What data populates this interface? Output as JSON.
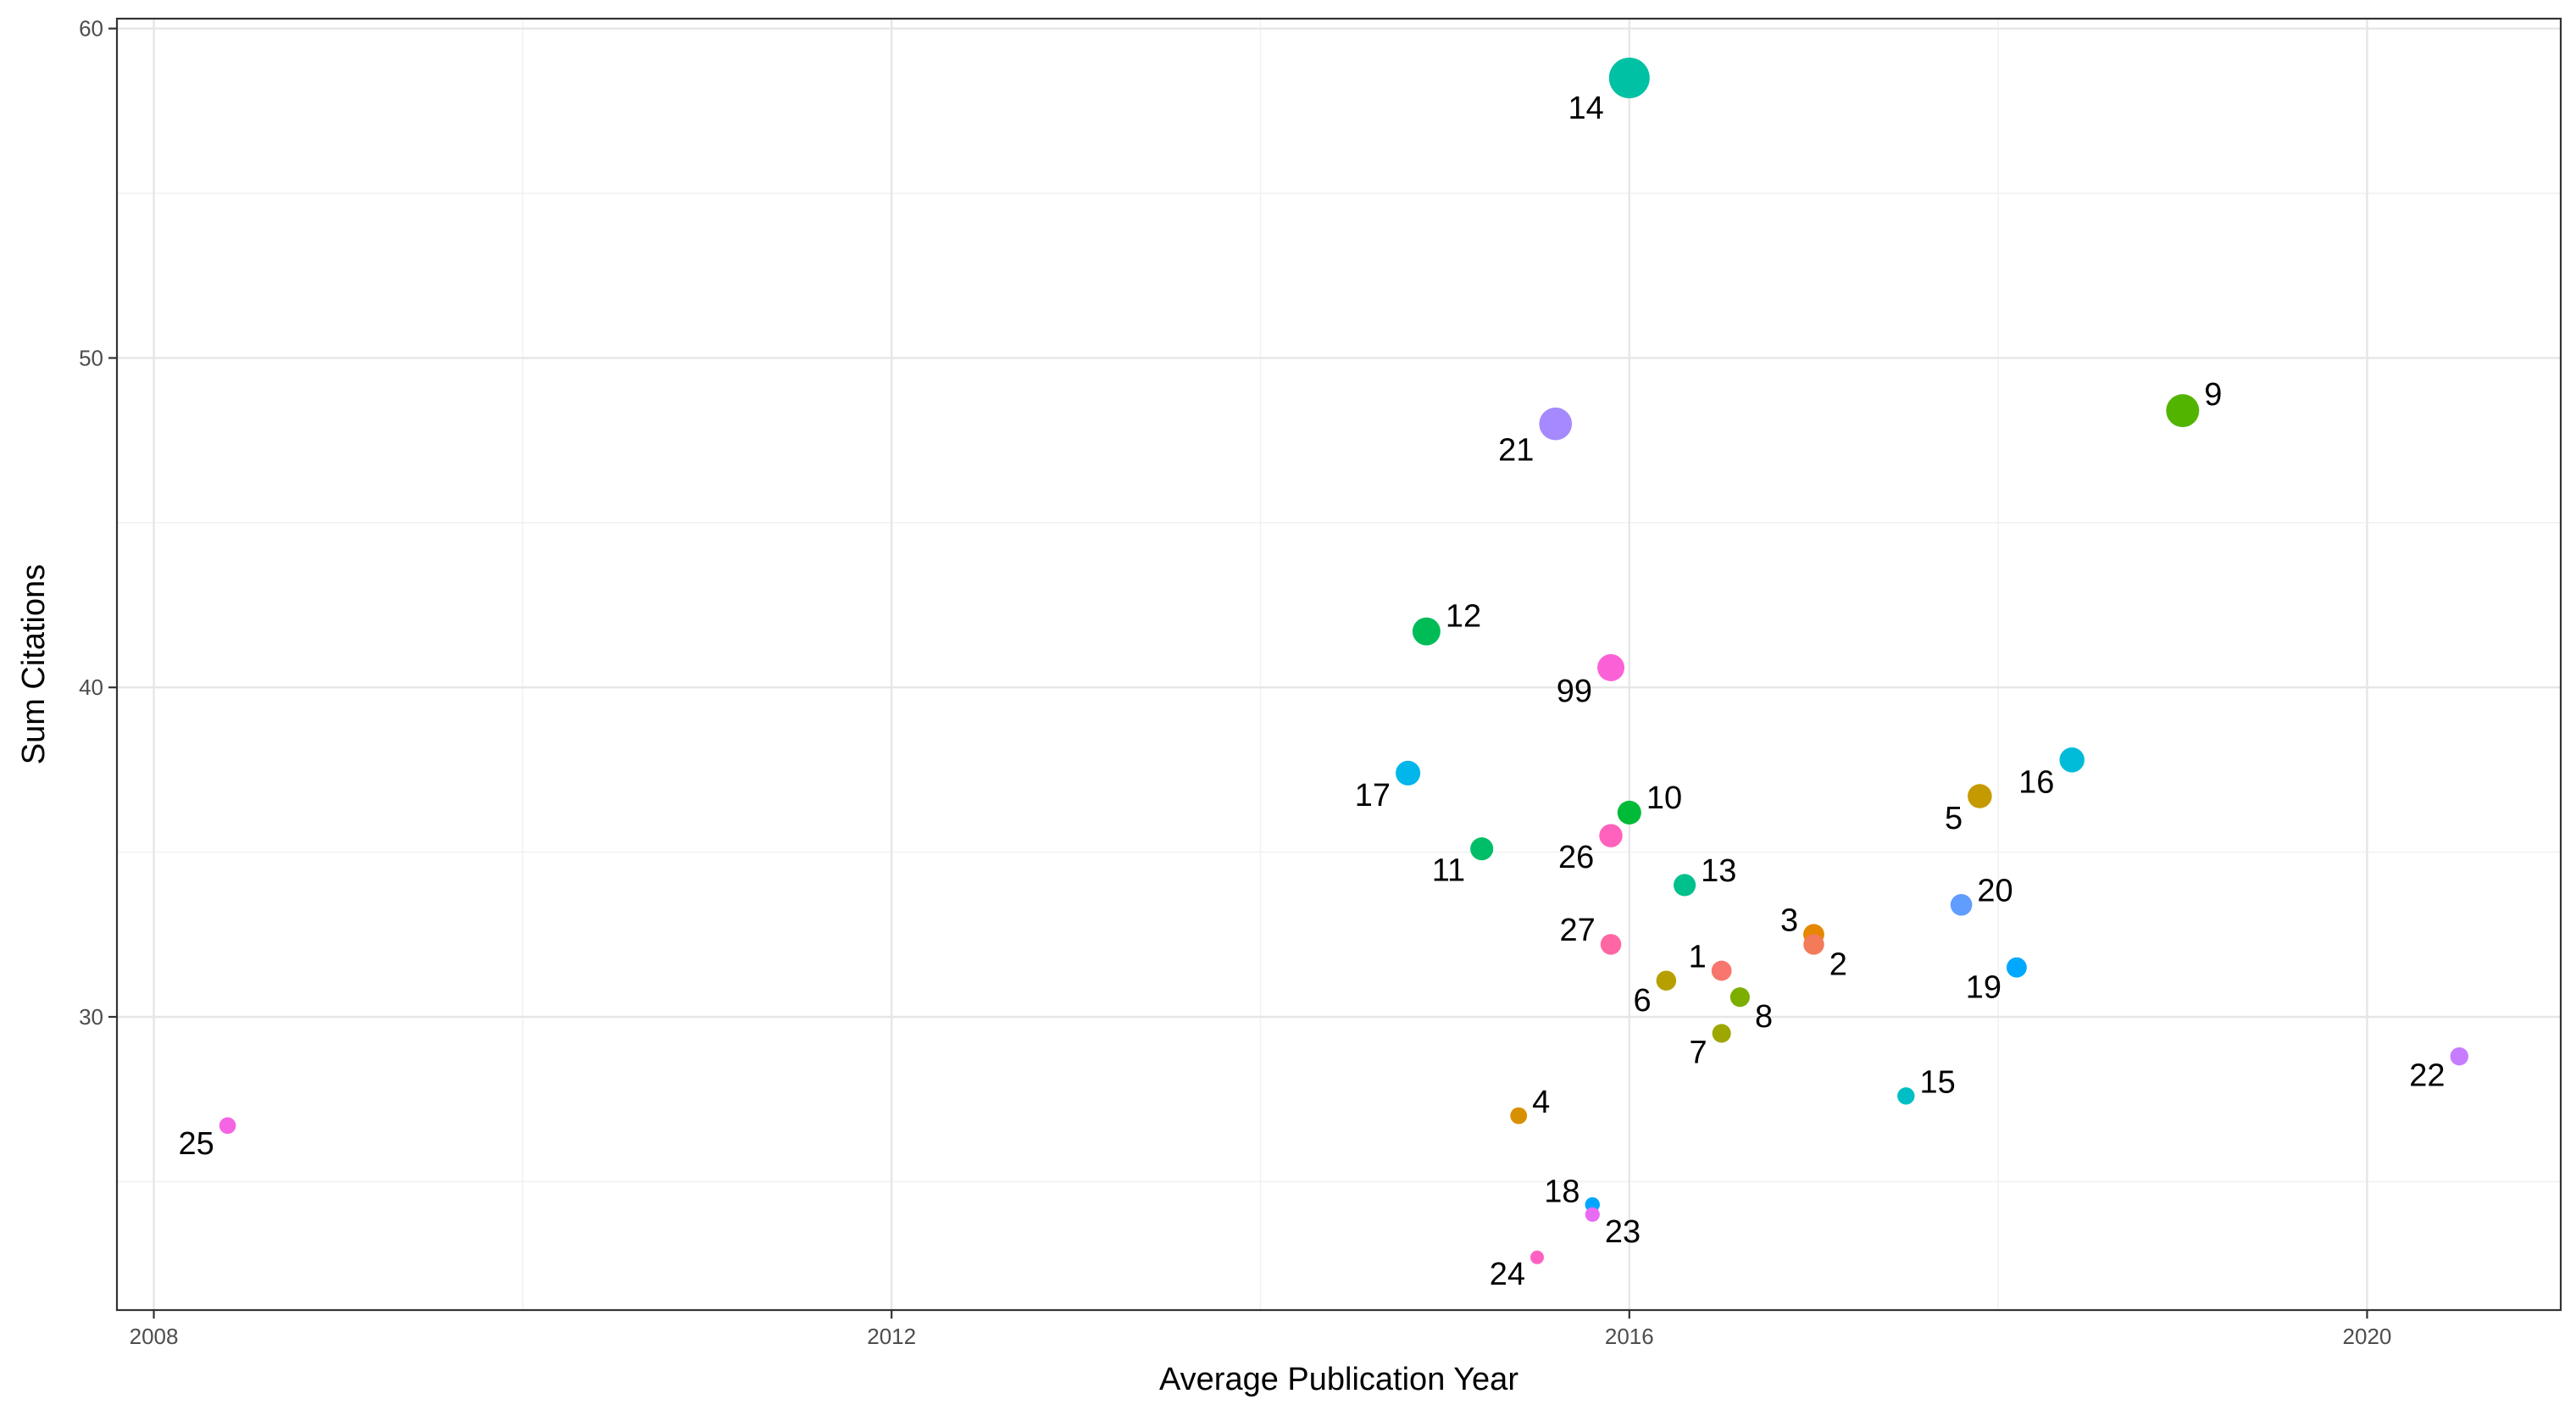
{
  "chart_data": {
    "type": "scatter",
    "xlabel": "Average Publication Year",
    "ylabel": "Sum Citations",
    "xlim": [
      2007.8,
      2021.05
    ],
    "ylim": [
      21.1,
      60.3
    ],
    "x_ticks": [
      2008,
      2012,
      2016,
      2020
    ],
    "x_tick_labels": [
      "2008",
      "2012",
      "2016",
      "2020"
    ],
    "y_ticks": [
      30,
      40,
      50,
      60
    ],
    "y_tick_labels": [
      "30",
      "40",
      "50",
      "60"
    ],
    "grid": true,
    "legend": "none",
    "points": [
      {
        "label": "14",
        "x": 2016.0,
        "y": 58.5,
        "size": 58.5,
        "color": "#00C1A3",
        "label_pos": "bottom-left"
      },
      {
        "label": "9",
        "x": 2019.0,
        "y": 48.4,
        "size": 48.4,
        "color": "#53B400",
        "label_pos": "top-right"
      },
      {
        "label": "21",
        "x": 2015.6,
        "y": 48.0,
        "size": 48.0,
        "color": "#A58AFF",
        "label_pos": "bottom-left"
      },
      {
        "label": "12",
        "x": 2014.9,
        "y": 41.7,
        "size": 41.7,
        "color": "#00BC56",
        "label_pos": "top-right"
      },
      {
        "label": "99",
        "x": 2015.9,
        "y": 40.6,
        "size": 40.6,
        "color": "#FB61D7",
        "label_pos": "bottom-left"
      },
      {
        "label": "16",
        "x": 2018.4,
        "y": 37.8,
        "size": 37.8,
        "color": "#00BCD8",
        "label_pos": "bottom-left"
      },
      {
        "label": "17",
        "x": 2014.8,
        "y": 37.4,
        "size": 37.4,
        "color": "#00B6EB",
        "label_pos": "bottom-left"
      },
      {
        "label": "5",
        "x": 2017.9,
        "y": 36.7,
        "size": 36.7,
        "color": "#C49A00",
        "label_pos": "bottom-left"
      },
      {
        "label": "10",
        "x": 2016.0,
        "y": 36.2,
        "size": 36.2,
        "color": "#00BA38",
        "label_pos": "top-right"
      },
      {
        "label": "26",
        "x": 2015.9,
        "y": 35.5,
        "size": 35.5,
        "color": "#FF62BC",
        "label_pos": "bottom-left"
      },
      {
        "label": "11",
        "x": 2015.2,
        "y": 35.1,
        "size": 35.1,
        "color": "#00BE67",
        "label_pos": "bottom-left"
      },
      {
        "label": "13",
        "x": 2016.3,
        "y": 34.0,
        "size": 34.0,
        "color": "#00C08B",
        "label_pos": "top-right"
      },
      {
        "label": "20",
        "x": 2017.8,
        "y": 33.4,
        "size": 33.4,
        "color": "#619CFF",
        "label_pos": "top-right"
      },
      {
        "label": "3",
        "x": 2017.0,
        "y": 32.5,
        "size": 32.5,
        "color": "#E58700",
        "label_pos": "top-left"
      },
      {
        "label": "2",
        "x": 2017.0,
        "y": 32.2,
        "size": 32.2,
        "color": "#F37B59",
        "label_pos": "bottom-right"
      },
      {
        "label": "27",
        "x": 2015.9,
        "y": 32.2,
        "size": 32.2,
        "color": "#FF67A4",
        "label_pos": "top-left"
      },
      {
        "label": "19",
        "x": 2018.1,
        "y": 31.5,
        "size": 31.5,
        "color": "#00A9FF",
        "label_pos": "bottom-left"
      },
      {
        "label": "1",
        "x": 2016.5,
        "y": 31.4,
        "size": 31.4,
        "color": "#F8766D",
        "label_pos": "top-left"
      },
      {
        "label": "6",
        "x": 2016.2,
        "y": 31.1,
        "size": 31.1,
        "color": "#B79F00",
        "label_pos": "bottom-left"
      },
      {
        "label": "8",
        "x": 2016.6,
        "y": 30.6,
        "size": 30.6,
        "color": "#7CAE00",
        "label_pos": "bottom-right"
      },
      {
        "label": "7",
        "x": 2016.5,
        "y": 29.5,
        "size": 29.5,
        "color": "#9DA700",
        "label_pos": "bottom-left"
      },
      {
        "label": "22",
        "x": 2020.5,
        "y": 28.8,
        "size": 28.8,
        "color": "#C77CFF",
        "label_pos": "bottom-left"
      },
      {
        "label": "15",
        "x": 2017.5,
        "y": 27.6,
        "size": 27.6,
        "color": "#00BFC4",
        "label_pos": "top-right"
      },
      {
        "label": "4",
        "x": 2015.4,
        "y": 27.0,
        "size": 27.0,
        "color": "#D89000",
        "label_pos": "top-right"
      },
      {
        "label": "25",
        "x": 2008.4,
        "y": 26.7,
        "size": 26.7,
        "color": "#F564E3",
        "label_pos": "bottom-left"
      },
      {
        "label": "18",
        "x": 2015.8,
        "y": 24.3,
        "size": 24.3,
        "color": "#00A5FF",
        "label_pos": "top-left"
      },
      {
        "label": "23",
        "x": 2015.8,
        "y": 24.0,
        "size": 24.0,
        "color": "#E76BF3",
        "label_pos": "bottom-right"
      },
      {
        "label": "24",
        "x": 2015.5,
        "y": 22.7,
        "size": 22.7,
        "color": "#FF61C3",
        "label_pos": "bottom-left"
      }
    ]
  }
}
